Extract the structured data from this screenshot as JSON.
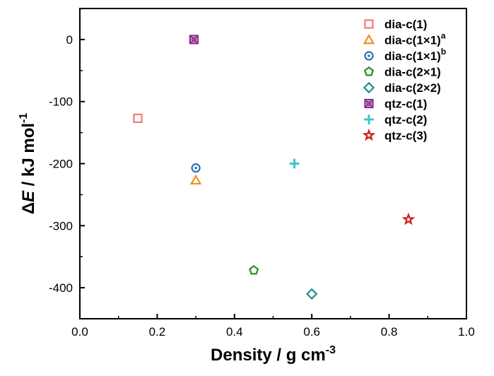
{
  "chart_data": {
    "type": "scatter",
    "xlabel": "Density / g cm",
    "xlabel_sup": "-3",
    "ylabel_delta": "Δ",
    "ylabel_E": "E",
    "ylabel_rest": " / kJ mol",
    "ylabel_sup": "-1",
    "xlim": [
      0.0,
      1.0
    ],
    "ylim": [
      -450,
      50
    ],
    "xticks": [
      {
        "value": 0.0,
        "label": "0.0"
      },
      {
        "value": 0.2,
        "label": "0.2"
      },
      {
        "value": 0.4,
        "label": "0.4"
      },
      {
        "value": 0.6,
        "label": "0.6"
      },
      {
        "value": 0.8,
        "label": "0.8"
      },
      {
        "value": 1.0,
        "label": "1.0"
      }
    ],
    "yticks": [
      {
        "value": 0,
        "label": "0"
      },
      {
        "value": -100,
        "label": "-100"
      },
      {
        "value": -200,
        "label": "-200"
      },
      {
        "value": -300,
        "label": "-300"
      },
      {
        "value": -400,
        "label": "-400"
      }
    ],
    "legend_position": "top-right",
    "grid": false,
    "series": [
      {
        "name": "dia-c(1)",
        "sup": "",
        "marker": "square",
        "color": "#f07b7b",
        "x": 0.15,
        "y": -127
      },
      {
        "name": "dia-c(1×1)",
        "sup": "a",
        "marker": "triangle",
        "color": "#f0901e",
        "x": 0.3,
        "y": -227
      },
      {
        "name": "dia-c(1×1)",
        "sup": "b",
        "marker": "circle-dot",
        "color": "#2b72b8",
        "x": 0.3,
        "y": -207
      },
      {
        "name": "dia-c(2×1)",
        "sup": "",
        "marker": "pentagon",
        "color": "#2c8a24",
        "x": 0.45,
        "y": -372
      },
      {
        "name": "dia-c(2×2)",
        "sup": "",
        "marker": "diamond",
        "color": "#1f8a8a",
        "x": 0.6,
        "y": -410
      },
      {
        "name": "qtz-c(1)",
        "sup": "",
        "marker": "square-x",
        "color": "#8a2a8a",
        "x": 0.295,
        "y": 0
      },
      {
        "name": "qtz-c(2)",
        "sup": "",
        "marker": "plus",
        "color": "#3cc6cc",
        "x": 0.555,
        "y": -200
      },
      {
        "name": "qtz-c(3)",
        "sup": "",
        "marker": "star",
        "color": "#d01e1e",
        "x": 0.85,
        "y": -290
      }
    ]
  }
}
